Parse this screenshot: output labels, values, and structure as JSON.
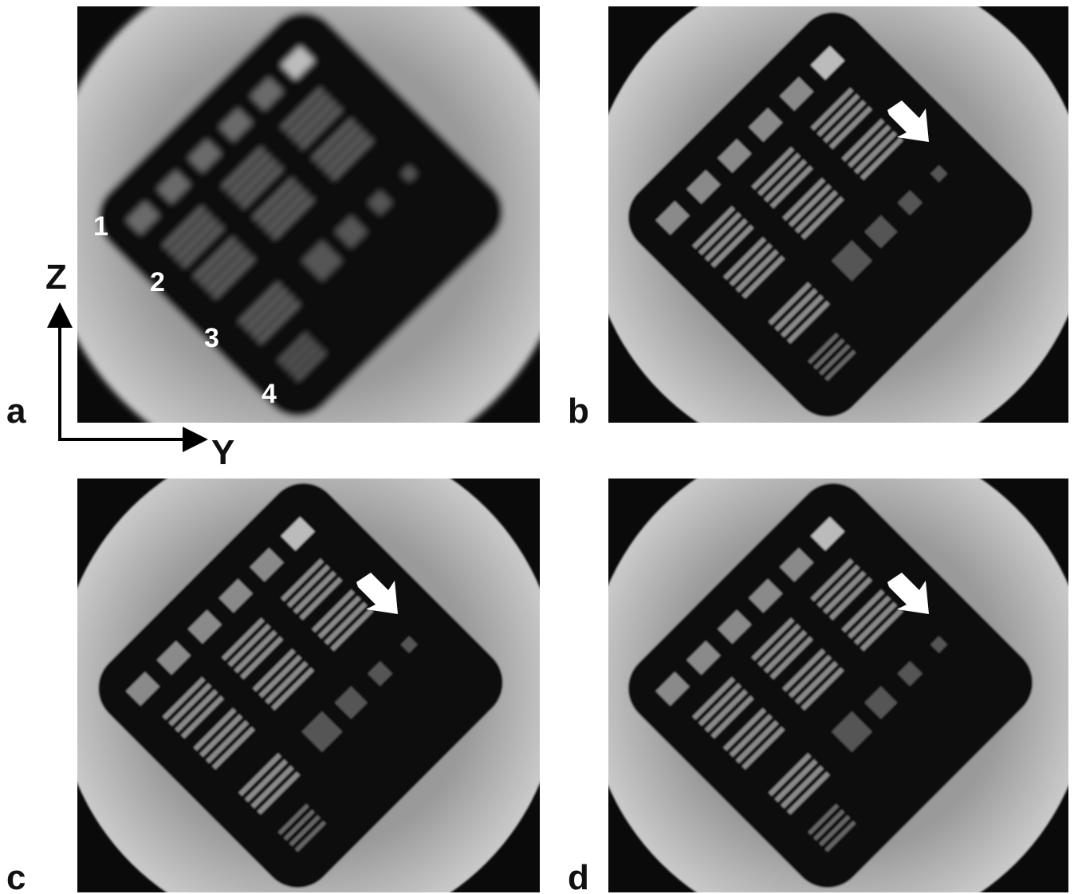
{
  "panels": [
    {
      "label": "a",
      "numbers": [
        "1",
        "2",
        "3",
        "4"
      ]
    },
    {
      "label": "b"
    },
    {
      "label": "c"
    },
    {
      "label": "d"
    }
  ],
  "axes": {
    "vertical": "Z",
    "horizontal": "Y"
  }
}
